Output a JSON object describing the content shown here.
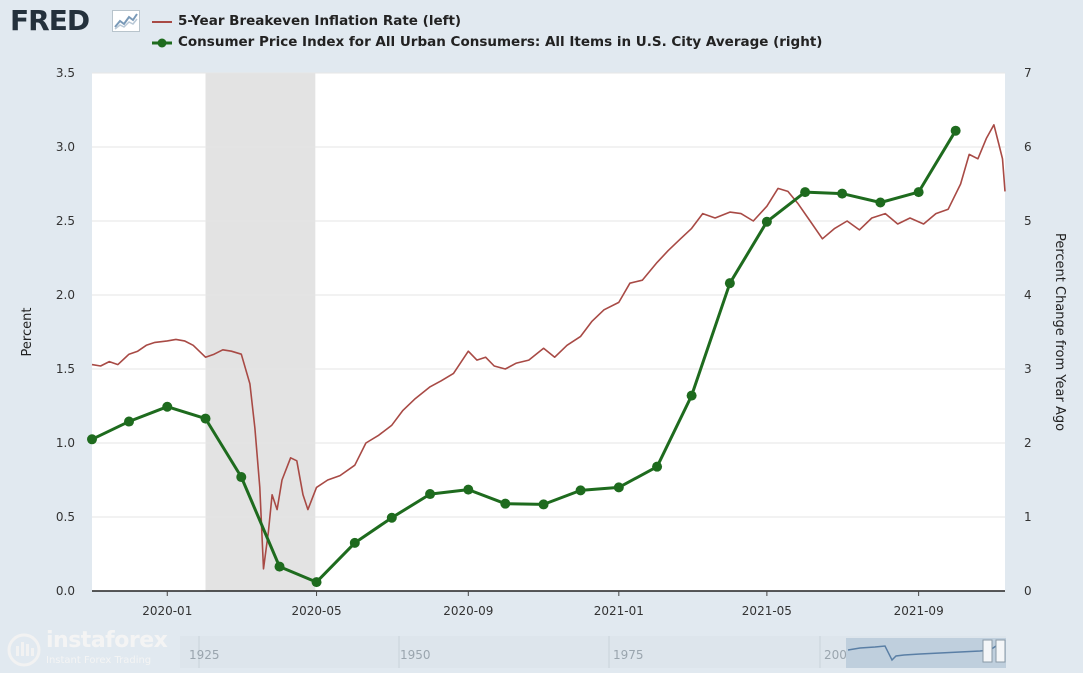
{
  "header": {
    "logo_text": "FRED",
    "legend": [
      {
        "label": "5-Year Breakeven Inflation Rate (left)",
        "color": "#a84a45",
        "marker": "line"
      },
      {
        "label": "Consumer Price Index for All Urban Consumers: All Items in U.S. City Average (right)",
        "color": "#1e6b1e",
        "marker": "line-dot"
      }
    ]
  },
  "chart_data": {
    "type": "line",
    "xlabel": "",
    "ylabel_left": "Percent",
    "ylabel_right": "Percent Change from Year Ago",
    "x_range": [
      "2019-11-01",
      "2021-11-10"
    ],
    "ylim_left": [
      0,
      3.5
    ],
    "ylim_right": [
      0,
      7
    ],
    "yticks_left": [
      "0.0",
      "0.5",
      "1.0",
      "1.5",
      "2.0",
      "2.5",
      "3.0",
      "3.5"
    ],
    "yticks_right": [
      "0",
      "1",
      "2",
      "3",
      "4",
      "5",
      "6",
      "7"
    ],
    "xticks": [
      {
        "label": "2020-01",
        "date": "2020-01-01"
      },
      {
        "label": "2020-05",
        "date": "2020-05-01"
      },
      {
        "label": "2020-09",
        "date": "2020-09-01"
      },
      {
        "label": "2021-01",
        "date": "2021-01-01"
      },
      {
        "label": "2021-05",
        "date": "2021-05-01"
      },
      {
        "label": "2021-09",
        "date": "2021-09-01"
      }
    ],
    "recession": {
      "start": "2020-02-01",
      "end": "2020-04-30",
      "color": "#e3e3e3"
    },
    "grid": true,
    "legend_position": "top-left",
    "series": [
      {
        "name": "5-Year Breakeven Inflation Rate (left)",
        "axis": "left",
        "color": "#a84a45",
        "points": [
          [
            "2019-11-01",
            1.53
          ],
          [
            "2019-11-08",
            1.52
          ],
          [
            "2019-11-15",
            1.55
          ],
          [
            "2019-11-22",
            1.53
          ],
          [
            "2019-12-01",
            1.6
          ],
          [
            "2019-12-08",
            1.62
          ],
          [
            "2019-12-15",
            1.66
          ],
          [
            "2019-12-22",
            1.68
          ],
          [
            "2020-01-01",
            1.69
          ],
          [
            "2020-01-08",
            1.7
          ],
          [
            "2020-01-15",
            1.69
          ],
          [
            "2020-01-22",
            1.66
          ],
          [
            "2020-02-01",
            1.58
          ],
          [
            "2020-02-08",
            1.6
          ],
          [
            "2020-02-15",
            1.63
          ],
          [
            "2020-02-22",
            1.62
          ],
          [
            "2020-03-01",
            1.6
          ],
          [
            "2020-03-08",
            1.4
          ],
          [
            "2020-03-12",
            1.1
          ],
          [
            "2020-03-16",
            0.7
          ],
          [
            "2020-03-19",
            0.15
          ],
          [
            "2020-03-23",
            0.4
          ],
          [
            "2020-03-26",
            0.65
          ],
          [
            "2020-03-30",
            0.55
          ],
          [
            "2020-04-03",
            0.75
          ],
          [
            "2020-04-10",
            0.9
          ],
          [
            "2020-04-15",
            0.88
          ],
          [
            "2020-04-20",
            0.65
          ],
          [
            "2020-04-24",
            0.55
          ],
          [
            "2020-05-01",
            0.7
          ],
          [
            "2020-05-10",
            0.75
          ],
          [
            "2020-05-20",
            0.78
          ],
          [
            "2020-06-01",
            0.85
          ],
          [
            "2020-06-10",
            1.0
          ],
          [
            "2020-06-20",
            1.05
          ],
          [
            "2020-07-01",
            1.12
          ],
          [
            "2020-07-10",
            1.22
          ],
          [
            "2020-07-20",
            1.3
          ],
          [
            "2020-08-01",
            1.38
          ],
          [
            "2020-08-10",
            1.42
          ],
          [
            "2020-08-20",
            1.47
          ],
          [
            "2020-09-01",
            1.62
          ],
          [
            "2020-09-08",
            1.56
          ],
          [
            "2020-09-15",
            1.58
          ],
          [
            "2020-09-22",
            1.52
          ],
          [
            "2020-10-01",
            1.5
          ],
          [
            "2020-10-10",
            1.54
          ],
          [
            "2020-10-20",
            1.56
          ],
          [
            "2020-11-01",
            1.64
          ],
          [
            "2020-11-10",
            1.58
          ],
          [
            "2020-11-20",
            1.66
          ],
          [
            "2020-12-01",
            1.72
          ],
          [
            "2020-12-10",
            1.82
          ],
          [
            "2020-12-20",
            1.9
          ],
          [
            "2021-01-01",
            1.95
          ],
          [
            "2021-01-10",
            2.08
          ],
          [
            "2021-01-20",
            2.1
          ],
          [
            "2021-02-01",
            2.22
          ],
          [
            "2021-02-10",
            2.3
          ],
          [
            "2021-02-20",
            2.38
          ],
          [
            "2021-03-01",
            2.45
          ],
          [
            "2021-03-10",
            2.55
          ],
          [
            "2021-03-20",
            2.52
          ],
          [
            "2021-04-01",
            2.56
          ],
          [
            "2021-04-10",
            2.55
          ],
          [
            "2021-04-20",
            2.5
          ],
          [
            "2021-05-01",
            2.6
          ],
          [
            "2021-05-10",
            2.72
          ],
          [
            "2021-05-18",
            2.7
          ],
          [
            "2021-05-26",
            2.62
          ],
          [
            "2021-06-05",
            2.5
          ],
          [
            "2021-06-15",
            2.38
          ],
          [
            "2021-06-25",
            2.45
          ],
          [
            "2021-07-05",
            2.5
          ],
          [
            "2021-07-15",
            2.44
          ],
          [
            "2021-07-25",
            2.52
          ],
          [
            "2021-08-05",
            2.55
          ],
          [
            "2021-08-15",
            2.48
          ],
          [
            "2021-08-25",
            2.52
          ],
          [
            "2021-09-05",
            2.48
          ],
          [
            "2021-09-15",
            2.55
          ],
          [
            "2021-09-25",
            2.58
          ],
          [
            "2021-10-05",
            2.75
          ],
          [
            "2021-10-12",
            2.95
          ],
          [
            "2021-10-19",
            2.92
          ],
          [
            "2021-10-26",
            3.06
          ],
          [
            "2021-11-01",
            3.15
          ],
          [
            "2021-11-05",
            3.02
          ],
          [
            "2021-11-08",
            2.92
          ],
          [
            "2021-11-10",
            2.7
          ]
        ]
      },
      {
        "name": "Consumer Price Index for All Urban Consumers: All Items in U.S. City Average (right)",
        "axis": "right",
        "color": "#1e6b1e",
        "points": [
          [
            "2019-11-01",
            2.05
          ],
          [
            "2019-12-01",
            2.29
          ],
          [
            "2020-01-01",
            2.49
          ],
          [
            "2020-02-01",
            2.33
          ],
          [
            "2020-03-01",
            1.54
          ],
          [
            "2020-04-01",
            0.33
          ],
          [
            "2020-05-01",
            0.12
          ],
          [
            "2020-06-01",
            0.65
          ],
          [
            "2020-07-01",
            0.99
          ],
          [
            "2020-08-01",
            1.31
          ],
          [
            "2020-09-01",
            1.37
          ],
          [
            "2020-10-01",
            1.18
          ],
          [
            "2020-11-01",
            1.17
          ],
          [
            "2020-12-01",
            1.36
          ],
          [
            "2021-01-01",
            1.4
          ],
          [
            "2021-02-01",
            1.68
          ],
          [
            "2021-03-01",
            2.64
          ],
          [
            "2021-04-01",
            4.16
          ],
          [
            "2021-05-01",
            4.99
          ],
          [
            "2021-06-01",
            5.39
          ],
          [
            "2021-07-01",
            5.37
          ],
          [
            "2021-08-01",
            5.25
          ],
          [
            "2021-09-01",
            5.39
          ],
          [
            "2021-10-01",
            6.22
          ]
        ]
      }
    ]
  },
  "navigator": {
    "years": [
      "1925",
      "1950",
      "1975",
      "200"
    ]
  },
  "watermark": {
    "brand": "instaforex",
    "tagline": "Instant Forex Trading"
  }
}
